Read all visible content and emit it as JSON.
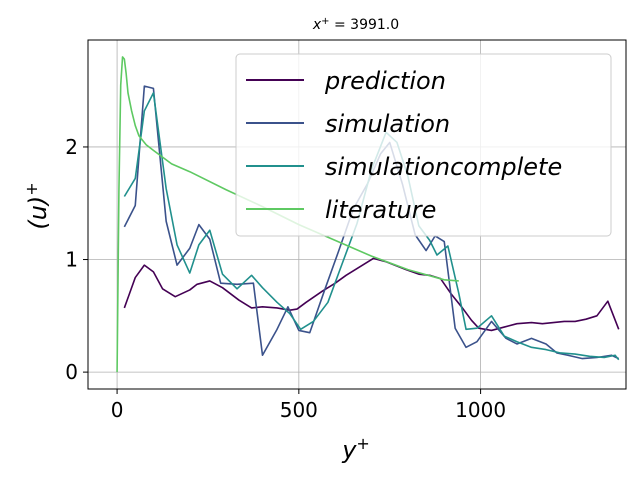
{
  "chart_data": {
    "type": "line",
    "title": "x⁺ = 3991.0",
    "title_var": "x",
    "title_sup": "+",
    "title_rest": " = 3991.0",
    "xlabel": "y",
    "xlabel_sup": "+",
    "ylabel": "(u)",
    "ylabel_sup": "+",
    "xlim": [
      -80,
      1400
    ],
    "ylim": [
      -0.15,
      2.95
    ],
    "xticks": [
      0,
      500,
      1000
    ],
    "xtick_labels": [
      "0",
      "500",
      "1000"
    ],
    "yticks": [
      0,
      1,
      2
    ],
    "ytick_labels": [
      "0",
      "1",
      "2"
    ],
    "grid": true,
    "legend_position": "top-right",
    "series": [
      {
        "name": "prediction",
        "color": "#440154",
        "x": [
          20,
          50,
          75,
          100,
          125,
          160,
          200,
          220,
          255,
          290,
          335,
          370,
          400,
          440,
          475,
          495,
          520,
          565,
          600,
          630,
          670,
          705,
          740,
          795,
          830,
          860,
          890,
          920,
          950,
          975,
          995,
          1030,
          1065,
          1100,
          1140,
          1170,
          1200,
          1230,
          1260,
          1290,
          1320,
          1350,
          1380
        ],
        "y": [
          0.57,
          0.84,
          0.95,
          0.89,
          0.74,
          0.67,
          0.73,
          0.78,
          0.81,
          0.75,
          0.64,
          0.57,
          0.58,
          0.57,
          0.55,
          0.56,
          0.62,
          0.72,
          0.79,
          0.86,
          0.94,
          1.01,
          0.98,
          0.91,
          0.87,
          0.86,
          0.83,
          0.69,
          0.57,
          0.46,
          0.39,
          0.37,
          0.4,
          0.43,
          0.44,
          0.43,
          0.44,
          0.45,
          0.45,
          0.47,
          0.5,
          0.63,
          0.38
        ]
      },
      {
        "name": "simulation",
        "color": "#3b528b",
        "x": [
          20,
          50,
          75,
          100,
          135,
          165,
          200,
          225,
          255,
          285,
          330,
          375,
          400,
          440,
          470,
          500,
          530,
          570,
          610,
          650,
          690,
          725,
          750,
          785,
          820,
          850,
          875,
          900,
          930,
          960,
          990,
          1030,
          1070,
          1100,
          1140,
          1180,
          1210,
          1240,
          1280,
          1320,
          1360,
          1380
        ],
        "y": [
          1.29,
          1.48,
          2.54,
          2.52,
          1.34,
          0.95,
          1.1,
          1.31,
          1.18,
          0.79,
          0.78,
          0.79,
          0.15,
          0.38,
          0.58,
          0.37,
          0.35,
          0.72,
          1.08,
          1.45,
          1.68,
          1.94,
          2.04,
          1.67,
          1.22,
          1.08,
          1.21,
          1.16,
          0.39,
          0.22,
          0.27,
          0.45,
          0.3,
          0.25,
          0.3,
          0.25,
          0.17,
          0.15,
          0.12,
          0.13,
          0.15,
          0.12
        ]
      },
      {
        "name": "simulationcomplete",
        "color": "#21908d",
        "x": [
          20,
          50,
          75,
          100,
          135,
          165,
          200,
          225,
          255,
          290,
          330,
          370,
          400,
          440,
          475,
          505,
          540,
          580,
          620,
          660,
          700,
          740,
          770,
          800,
          830,
          860,
          880,
          910,
          940,
          960,
          990,
          1030,
          1065,
          1100,
          1140,
          1180,
          1220,
          1260,
          1300,
          1340,
          1370,
          1380
        ],
        "y": [
          1.56,
          1.72,
          2.32,
          2.48,
          1.63,
          1.13,
          0.88,
          1.13,
          1.26,
          0.87,
          0.74,
          0.86,
          0.75,
          0.62,
          0.52,
          0.38,
          0.45,
          0.62,
          0.97,
          1.32,
          1.8,
          2.13,
          2.04,
          1.74,
          1.3,
          1.17,
          1.04,
          1.12,
          0.7,
          0.38,
          0.39,
          0.5,
          0.32,
          0.27,
          0.22,
          0.2,
          0.17,
          0.16,
          0.14,
          0.13,
          0.15,
          0.11
        ]
      },
      {
        "name": "literature",
        "color": "#5ec962",
        "x": [
          0,
          5,
          10,
          15,
          20,
          25,
          30,
          40,
          50,
          60,
          80,
          100,
          150,
          200,
          300,
          400,
          500,
          600,
          700,
          800,
          900,
          940
        ],
        "y": [
          0.0,
          1.6,
          2.55,
          2.8,
          2.78,
          2.65,
          2.48,
          2.32,
          2.19,
          2.1,
          2.02,
          1.97,
          1.85,
          1.78,
          1.62,
          1.47,
          1.31,
          1.17,
          1.03,
          0.91,
          0.82,
          0.81
        ]
      }
    ]
  }
}
